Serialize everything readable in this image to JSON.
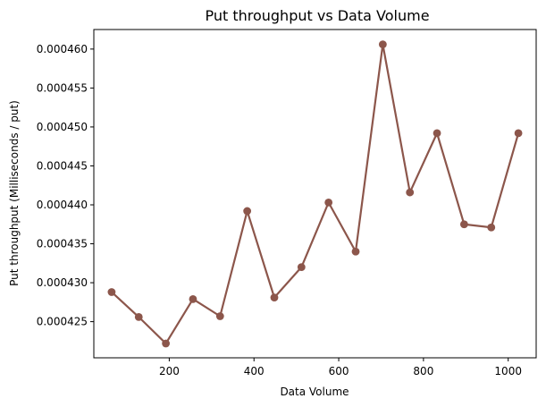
{
  "chart_data": {
    "type": "line",
    "title": "Put throughput vs Data Volume",
    "xlabel": "Data Volume",
    "ylabel": "Put throughput (Milliseconds / put)",
    "xlim": [
      22,
      1066
    ],
    "ylim": [
      0.00042036,
      0.00046251
    ],
    "xticks": [
      200,
      400,
      600,
      800,
      1000
    ],
    "xtick_labels": [
      "200",
      "400",
      "600",
      "800",
      "1000"
    ],
    "yticks": [
      0.000425,
      0.00043,
      0.000435,
      0.00044,
      0.000445,
      0.00045,
      0.000455,
      0.00046
    ],
    "ytick_labels": [
      "0.000425",
      "0.000430",
      "0.000435",
      "0.000440",
      "0.000445",
      "0.000450",
      "0.000455",
      "0.000460"
    ],
    "grid": false,
    "series": [
      {
        "color": "#8c564b",
        "x": [
          64,
          128,
          192,
          256,
          320,
          384,
          448,
          512,
          576,
          640,
          704,
          768,
          832,
          896,
          960,
          1024
        ],
        "y": [
          0.0004288,
          0.0004256,
          0.0004222,
          0.0004279,
          0.0004257,
          0.0004392,
          0.0004281,
          0.000432,
          0.0004403,
          0.000434,
          0.0004606,
          0.0004416,
          0.0004492,
          0.0004375,
          0.0004371,
          0.0004492
        ]
      }
    ]
  }
}
